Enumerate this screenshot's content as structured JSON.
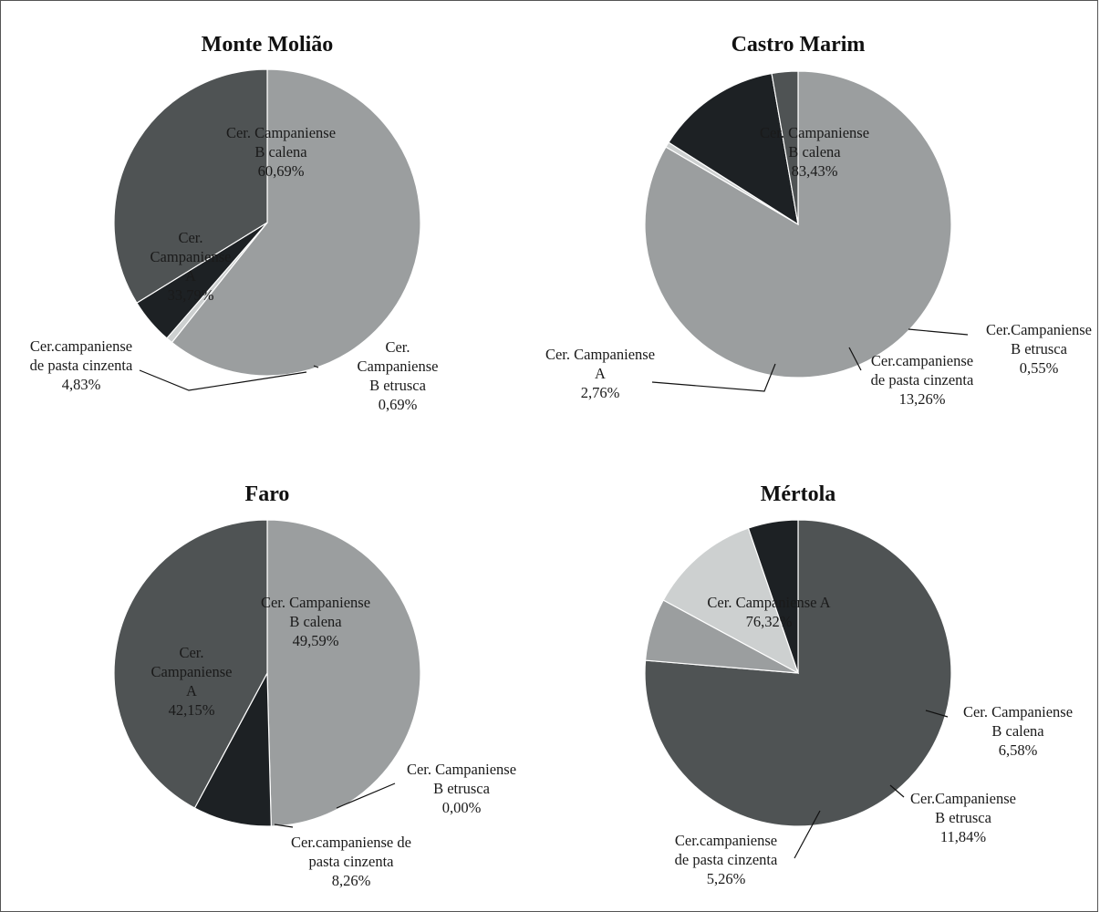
{
  "chart_data": [
    {
      "type": "pie",
      "title": "Monte Molião",
      "colors": {
        "campanA": "#4f5354",
        "calena": "#9b9e9f",
        "etrusca": "#cdd0d0",
        "cinzenta": "#1d2124"
      },
      "slices": [
        {
          "key": "calena",
          "label_lines": [
            "Cer. Campaniense",
            "B calena",
            "60,69%"
          ],
          "value": 60.69
        },
        {
          "key": "etrusca",
          "label_lines": [
            "Cer.",
            "Campaniense",
            "B etrusca",
            "0,69%"
          ],
          "value": 0.69
        },
        {
          "key": "cinzenta",
          "label_lines": [
            "Cer.campaniense",
            "de pasta cinzenta",
            "4,83%"
          ],
          "value": 4.83
        },
        {
          "key": "campanA",
          "label_lines": [
            "Cer.",
            "Campaniense",
            "A",
            "33,79%"
          ],
          "value": 33.79
        }
      ]
    },
    {
      "type": "pie",
      "title": "Castro Marim",
      "slices": [
        {
          "key": "calena",
          "label_lines": [
            "Cer. Campaniense",
            "B calena",
            "83,43%"
          ],
          "value": 83.43
        },
        {
          "key": "etrusca",
          "label_lines": [
            "Cer.Campaniense",
            "B etrusca",
            "0,55%"
          ],
          "value": 0.55
        },
        {
          "key": "cinzenta",
          "label_lines": [
            "Cer.campaniense",
            "de pasta cinzenta",
            "13,26%"
          ],
          "value": 13.26
        },
        {
          "key": "campanA",
          "label_lines": [
            "Cer. Campaniense",
            "A",
            "2,76%"
          ],
          "value": 2.76
        }
      ]
    },
    {
      "type": "pie",
      "title": "Faro",
      "slices": [
        {
          "key": "calena",
          "label_lines": [
            "Cer. Campaniense",
            "B calena",
            "49,59%"
          ],
          "value": 49.59
        },
        {
          "key": "etrusca",
          "label_lines": [
            "Cer. Campaniense",
            "B etrusca",
            "0,00%"
          ],
          "value": 0.0
        },
        {
          "key": "cinzenta",
          "label_lines": [
            "Cer.campaniense de",
            "pasta cinzenta",
            "8,26%"
          ],
          "value": 8.26
        },
        {
          "key": "campanA",
          "label_lines": [
            "Cer.",
            "Campaniense",
            "A",
            "42,15%"
          ],
          "value": 42.15
        }
      ]
    },
    {
      "type": "pie",
      "title": "Mértola",
      "slices": [
        {
          "key": "campanA",
          "label_lines": [
            "Cer. Campaniense A",
            "76,32%"
          ],
          "value": 76.32
        },
        {
          "key": "calena",
          "label_lines": [
            "Cer. Campaniense",
            "B calena",
            "6,58%"
          ],
          "value": 6.58
        },
        {
          "key": "etrusca",
          "label_lines": [
            "Cer.Campaniense",
            "B etrusca",
            "11,84%"
          ],
          "value": 11.84
        },
        {
          "key": "cinzenta",
          "label_lines": [
            "Cer.campaniense",
            "de pasta cinzenta",
            "5,26%"
          ],
          "value": 5.26
        }
      ]
    }
  ]
}
